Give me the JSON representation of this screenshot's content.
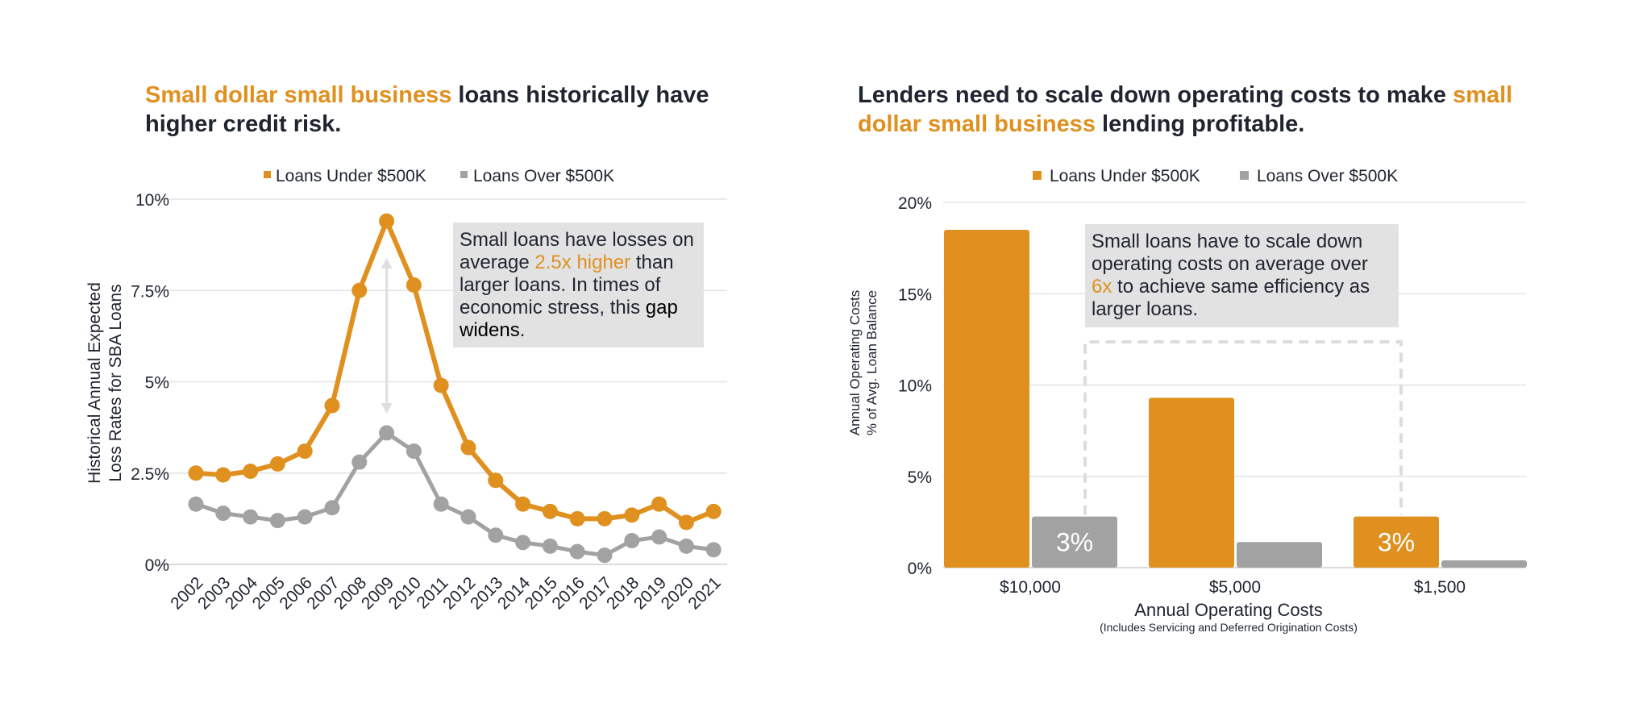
{
  "left_chart": {
    "title": {
      "highlight": "Small dollar small business",
      "rest": " loans historically have higher credit risk."
    },
    "callout": {
      "part1": "Small loans have losses on average ",
      "highlight": "2.5x higher",
      "part2": " than larger loans. In times of economic stress, this ",
      "dark": "gap widens",
      "part3": "."
    }
  },
  "right_chart": {
    "title": {
      "part1": "Lenders need to scale down operating costs to make ",
      "highlight": "small dollar small business",
      "part2": " lending profitable."
    },
    "callout": {
      "part1": "Small loans have to scale down operating costs on average over ",
      "highlight": "6x",
      "part2": " to achieve same efficiency as larger loans."
    }
  },
  "colors": {
    "orange": "#df901f",
    "gray": "#a2a2a2",
    "grid": "#e3e3e3",
    "callout_bg": "#e2e2e2",
    "text": "#1f2430"
  },
  "chart_data": [
    {
      "type": "line",
      "x": [
        "2002",
        "2003",
        "2004",
        "2005",
        "2006",
        "2007",
        "2008",
        "2009",
        "2010",
        "2011",
        "2012",
        "2013",
        "2014",
        "2015",
        "2016",
        "2017",
        "2018",
        "2019",
        "2020",
        "2021"
      ],
      "series": [
        {
          "name": "Loans Under $500K",
          "values": [
            2.5,
            2.45,
            2.55,
            2.75,
            3.1,
            4.35,
            7.5,
            9.4,
            7.65,
            4.9,
            3.2,
            2.3,
            1.65,
            1.45,
            1.25,
            1.25,
            1.35,
            1.65,
            1.15,
            1.45
          ]
        },
        {
          "name": "Loans Over $500K",
          "values": [
            1.65,
            1.4,
            1.3,
            1.2,
            1.3,
            1.55,
            2.8,
            3.6,
            3.1,
            1.65,
            1.3,
            0.8,
            0.6,
            0.5,
            0.35,
            0.25,
            0.65,
            0.75,
            0.5,
            0.4
          ]
        }
      ],
      "ylabel": [
        "Historical Annual Expected",
        "Loss Rates for SBA Loans"
      ],
      "ylim": [
        0,
        10
      ],
      "yticks": [
        0,
        2.5,
        5,
        7.5,
        10
      ],
      "ytick_labels": [
        "0%",
        "2.5%",
        "5%",
        "7.5%",
        "10%"
      ],
      "grid": true,
      "legend": "top-center"
    },
    {
      "type": "bar",
      "categories": [
        "$10,000",
        "$5,000",
        "$1,500"
      ],
      "series": [
        {
          "name": "Loans Under $500K",
          "values": [
            18.5,
            9.3,
            2.8
          ]
        },
        {
          "name": "Loans Over $500K",
          "values": [
            2.8,
            1.4,
            0.4
          ]
        }
      ],
      "data_labels": [
        {
          "category": 0,
          "series": 1,
          "text": "3%"
        },
        {
          "category": 2,
          "series": 0,
          "text": "3%"
        }
      ],
      "xlabel": "Annual Operating Costs",
      "xlabel_sub": "(Includes Servicing and Deferred Origination Costs)",
      "ylabel": [
        "Annual Operating Costs",
        "% of Avg. Loan Balance"
      ],
      "ylim": [
        0,
        20
      ],
      "yticks": [
        0,
        5,
        10,
        15,
        20
      ],
      "ytick_labels": [
        "0%",
        "5%",
        "10%",
        "15%",
        "20%"
      ],
      "grid": true,
      "legend": "top-center"
    }
  ]
}
